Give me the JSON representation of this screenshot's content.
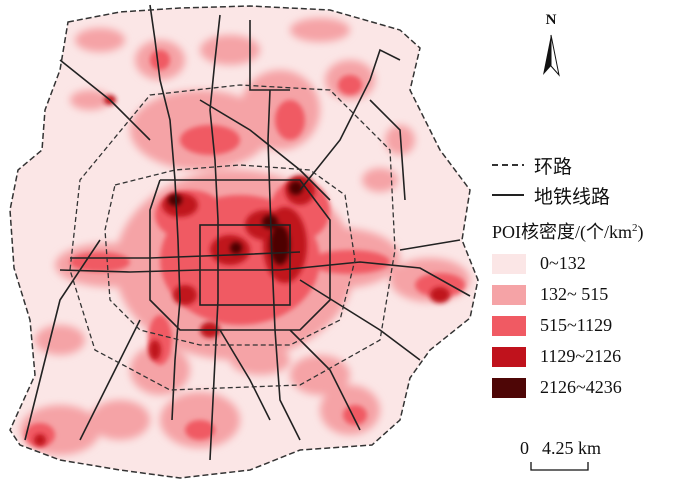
{
  "legend": {
    "ring_road_label": "环路",
    "metro_label": "地铁线路",
    "density_title_main": "POI核密度/(个/km",
    "density_title_sup": "2",
    "density_title_end": ")",
    "classes": [
      {
        "label": "0~132",
        "color": "#fbe6e6"
      },
      {
        "label": "132~ 515",
        "color": "#f5a3a6"
      },
      {
        "label": "515~1129",
        "color": "#f05a63"
      },
      {
        "label": "1129~2126",
        "color": "#c0121c"
      },
      {
        "label": "2126~4236",
        "color": "#4e0606"
      }
    ]
  },
  "north_arrow": {
    "letter": "N"
  },
  "scale_bar": {
    "zero": "0",
    "distance": "4.25 km"
  },
  "colors": {
    "background_fill": "#fbe6e6",
    "ring_road": "#333333",
    "metro": "#222222"
  }
}
